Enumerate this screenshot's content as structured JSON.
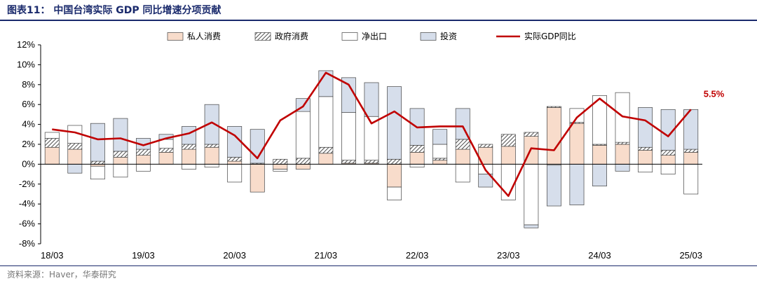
{
  "figure": {
    "title": "图表11： 中国台湾实际 GDP 同比增速分项贡献",
    "source": "资料来源：Haver，华泰研究"
  },
  "colors": {
    "private": "#f8dccb",
    "gov": "#ffffff",
    "netexp": "#ffffff",
    "invest": "#d6deeb",
    "gdp": "#c00000",
    "frame": "#1a2a6c"
  },
  "chart_data": {
    "type": "bar",
    "stacked": true,
    "ylim": [
      -8,
      12
    ],
    "yticks": [
      -8,
      -6,
      -4,
      -2,
      0,
      2,
      4,
      6,
      8,
      10,
      12
    ],
    "ytick_labels": [
      "-8%",
      "-6%",
      "-4%",
      "-2%",
      "0%",
      "2%",
      "4%",
      "6%",
      "8%",
      "10%",
      "12%"
    ],
    "x": [
      "18/03",
      "18/06",
      "18/09",
      "18/12",
      "19/03",
      "19/06",
      "19/09",
      "19/12",
      "20/03",
      "20/06",
      "20/09",
      "20/12",
      "21/03",
      "21/06",
      "21/09",
      "21/12",
      "22/03",
      "22/06",
      "22/09",
      "22/12",
      "23/03",
      "23/06",
      "23/09",
      "23/12",
      "24/03",
      "24/06",
      "24/09",
      "24/12",
      "25/03"
    ],
    "xtick_labels": [
      "18/03",
      "19/03",
      "20/03",
      "21/03",
      "22/03",
      "23/03",
      "24/03",
      "25/03"
    ],
    "xtick_index": [
      0,
      4,
      8,
      12,
      16,
      20,
      24,
      28
    ],
    "legend_position": "top",
    "series": [
      {
        "name": "私人消费",
        "kind": "bar",
        "values": [
          1.7,
          1.5,
          -0.2,
          0.7,
          0.9,
          1.2,
          1.5,
          1.7,
          0.3,
          -2.8,
          -0.5,
          -0.5,
          1.1,
          0.1,
          0.1,
          -2.3,
          1.2,
          0.4,
          1.5,
          1.7,
          1.8,
          2.8,
          5.7,
          4.1,
          1.9,
          2.0,
          1.4,
          0.9,
          1.2
        ]
      },
      {
        "name": "政府消费",
        "kind": "bar",
        "values": [
          0.9,
          0.6,
          0.3,
          0.6,
          0.6,
          0.4,
          0.5,
          0.3,
          0.4,
          0.1,
          0.5,
          0.6,
          0.6,
          0.3,
          0.3,
          0.5,
          0.7,
          0.2,
          1.0,
          0.3,
          1.2,
          0.4,
          0.1,
          0.1,
          0.1,
          0.2,
          0.3,
          0.5,
          0.3
        ]
      },
      {
        "name": "净出口",
        "kind": "bar",
        "values": [
          0.6,
          1.8,
          -1.3,
          -1.3,
          -0.7,
          0.9,
          -0.5,
          -0.3,
          -1.8,
          0.0,
          -0.2,
          4.7,
          5.1,
          4.8,
          4.4,
          -1.3,
          -0.3,
          1.4,
          -1.8,
          -1.0,
          -3.6,
          -6.1,
          -0.1,
          1.4,
          4.9,
          5.0,
          -0.8,
          -1.0,
          -3.0
        ]
      },
      {
        "name": "投资",
        "kind": "bar",
        "values": [
          0.0,
          -0.9,
          3.8,
          3.3,
          1.1,
          0.5,
          1.8,
          4.0,
          3.1,
          3.4,
          0.0,
          1.3,
          2.6,
          3.5,
          3.4,
          7.3,
          3.7,
          1.5,
          3.1,
          -1.3,
          0.0,
          -0.3,
          -4.1,
          -4.1,
          -2.2,
          -0.7,
          4.0,
          4.1,
          4.0
        ]
      },
      {
        "name": "实际GDP同比",
        "kind": "line",
        "values": [
          3.5,
          3.2,
          2.5,
          2.6,
          1.9,
          2.6,
          3.1,
          4.2,
          2.9,
          0.6,
          4.4,
          5.8,
          9.2,
          8.0,
          4.1,
          5.3,
          3.7,
          3.8,
          3.8,
          -0.6,
          -3.2,
          1.6,
          1.4,
          4.7,
          6.6,
          4.8,
          4.4,
          2.8,
          5.5
        ]
      }
    ],
    "annotation": {
      "text": "5.5%",
      "index": 28,
      "value": 5.5
    }
  }
}
